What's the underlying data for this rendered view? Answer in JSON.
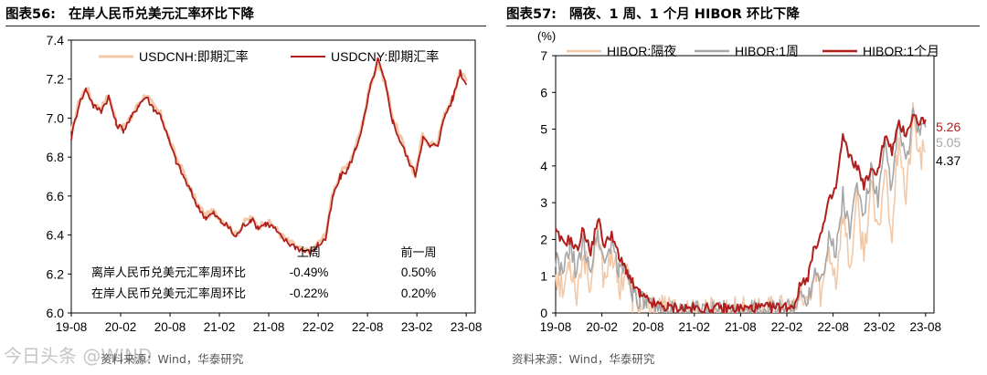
{
  "left": {
    "title_num": "图表56:",
    "title_text": "在岸人民币兑美元汇率环比下降",
    "source": "资料来源：Wind，华泰研究",
    "watermark": "今日头条 @WIND",
    "table": {
      "col1": "上周",
      "col2": "前一周",
      "rows": [
        {
          "label": "离岸人民币兑美元汇率周环比",
          "v1": "-0.49%",
          "v2": "0.50%"
        },
        {
          "label": "在岸人民币兑美元汇率周环比",
          "v1": "-0.22%",
          "v2": "0.20%"
        }
      ]
    },
    "chart_data": {
      "type": "line",
      "title": "在岸人民币兑美元汇率环比下降",
      "xlabel": "",
      "ylabel": "",
      "x_ticks": [
        "19-08",
        "20-02",
        "20-08",
        "21-02",
        "21-08",
        "22-02",
        "22-08",
        "23-02",
        "23-08"
      ],
      "ylim": [
        6.0,
        7.4
      ],
      "y_ticks": [
        "6.0",
        "6.2",
        "6.4",
        "6.6",
        "6.8",
        "7.0",
        "7.2",
        "7.4"
      ],
      "legend": "top",
      "colors": {
        "USDCNH": "#f2c9a8",
        "USDCNY": "#b01e1e"
      },
      "series": [
        {
          "name": "USDCNH:即期汇率",
          "anchors": [
            [
              0,
              6.92
            ],
            [
              0.5,
              7.08
            ],
            [
              1,
              7.16
            ],
            [
              1.5,
              7.07
            ],
            [
              2,
              7.05
            ],
            [
              2.5,
              7.12
            ],
            [
              3,
              6.98
            ],
            [
              3.5,
              6.95
            ],
            [
              4,
              7.0
            ],
            [
              4.5,
              7.08
            ],
            [
              5,
              7.12
            ],
            [
              5.5,
              7.06
            ],
            [
              6,
              7.02
            ],
            [
              6.5,
              6.9
            ],
            [
              7,
              6.8
            ],
            [
              7.5,
              6.72
            ],
            [
              8,
              6.63
            ],
            [
              8.5,
              6.55
            ],
            [
              9,
              6.5
            ],
            [
              9.5,
              6.52
            ],
            [
              10,
              6.48
            ],
            [
              10.5,
              6.45
            ],
            [
              11,
              6.4
            ],
            [
              11.5,
              6.46
            ],
            [
              12,
              6.49
            ],
            [
              12.5,
              6.44
            ],
            [
              13,
              6.47
            ],
            [
              13.5,
              6.45
            ],
            [
              14,
              6.4
            ],
            [
              14.5,
              6.37
            ],
            [
              15,
              6.34
            ],
            [
              15.5,
              6.32
            ],
            [
              16,
              6.32
            ],
            [
              16.5,
              6.36
            ],
            [
              17,
              6.4
            ],
            [
              17.5,
              6.62
            ],
            [
              18,
              6.72
            ],
            [
              18.5,
              6.75
            ],
            [
              19,
              6.85
            ],
            [
              19.5,
              6.98
            ],
            [
              20,
              7.18
            ],
            [
              20.5,
              7.28
            ],
            [
              21,
              7.18
            ],
            [
              21.5,
              7.0
            ],
            [
              22,
              6.9
            ],
            [
              22.5,
              6.8
            ],
            [
              23,
              6.7
            ],
            [
              23.5,
              6.92
            ],
            [
              24,
              6.86
            ],
            [
              24.5,
              6.88
            ],
            [
              25,
              7.03
            ],
            [
              25.5,
              7.1
            ],
            [
              26,
              7.25
            ],
            [
              26.4,
              7.19
            ]
          ]
        },
        {
          "name": "USDCNY:即期汇率",
          "anchors": [
            [
              0,
              6.9
            ],
            [
              0.5,
              7.07
            ],
            [
              1,
              7.15
            ],
            [
              1.5,
              7.06
            ],
            [
              2,
              7.04
            ],
            [
              2.5,
              7.11
            ],
            [
              3,
              6.97
            ],
            [
              3.5,
              6.94
            ],
            [
              4,
              7.0
            ],
            [
              4.5,
              7.07
            ],
            [
              5,
              7.11
            ],
            [
              5.5,
              7.05
            ],
            [
              6,
              7.01
            ],
            [
              6.5,
              6.89
            ],
            [
              7,
              6.78
            ],
            [
              7.5,
              6.7
            ],
            [
              8,
              6.62
            ],
            [
              8.5,
              6.54
            ],
            [
              9,
              6.49
            ],
            [
              9.5,
              6.51
            ],
            [
              10,
              6.47
            ],
            [
              10.5,
              6.44
            ],
            [
              11,
              6.39
            ],
            [
              11.5,
              6.45
            ],
            [
              12,
              6.48
            ],
            [
              12.5,
              6.44
            ],
            [
              13,
              6.46
            ],
            [
              13.5,
              6.44
            ],
            [
              14,
              6.39
            ],
            [
              14.5,
              6.36
            ],
            [
              15,
              6.34
            ],
            [
              15.5,
              6.32
            ],
            [
              16,
              6.31
            ],
            [
              16.5,
              6.35
            ],
            [
              17,
              6.38
            ],
            [
              17.5,
              6.6
            ],
            [
              18,
              6.7
            ],
            [
              18.5,
              6.74
            ],
            [
              19,
              6.84
            ],
            [
              19.5,
              6.97
            ],
            [
              20,
              7.16
            ],
            [
              20.5,
              7.3
            ],
            [
              21,
              7.17
            ],
            [
              21.5,
              6.98
            ],
            [
              22,
              6.88
            ],
            [
              22.5,
              6.79
            ],
            [
              23,
              6.71
            ],
            [
              23.5,
              6.9
            ],
            [
              24,
              6.85
            ],
            [
              24.5,
              6.87
            ],
            [
              25,
              7.02
            ],
            [
              25.5,
              7.1
            ],
            [
              26,
              7.24
            ],
            [
              26.4,
              7.17
            ]
          ]
        }
      ]
    }
  },
  "right": {
    "title_num": "图表57:",
    "title_text": "隔夜、1 周、1 个月 HIBOR 环比下降",
    "source": "资料来源：Wind，华泰研究",
    "chart_data": {
      "type": "line",
      "title": "隔夜、1 周、1 个月 HIBOR 环比下降",
      "xlabel": "",
      "ylabel": "(%)",
      "x_ticks": [
        "19-08",
        "20-02",
        "20-08",
        "21-02",
        "21-08",
        "22-02",
        "22-08",
        "23-02",
        "23-08"
      ],
      "ylim": [
        0,
        7
      ],
      "y_ticks": [
        "0",
        "1",
        "2",
        "3",
        "4",
        "5",
        "6",
        "7"
      ],
      "legend": "top",
      "colors": {
        "overnight": "#f2c9a8",
        "week": "#a6a6a6",
        "month": "#b01e1e"
      },
      "end_labels": [
        {
          "text": "5.26",
          "color": "#b01e1e"
        },
        {
          "text": "5.05",
          "color": "#a6a6a6"
        },
        {
          "text": "4.37",
          "color": "#000000"
        }
      ],
      "series": [
        {
          "name": "HIBOR:隔夜",
          "anchors": [
            [
              0,
              1.2
            ],
            [
              0.5,
              0.5
            ],
            [
              1,
              1.5
            ],
            [
              1.5,
              0.6
            ],
            [
              2,
              1.6
            ],
            [
              2.5,
              0.8
            ],
            [
              3,
              2.0
            ],
            [
              3.5,
              0.9
            ],
            [
              4,
              1.8
            ],
            [
              4.5,
              0.7
            ],
            [
              5,
              1.2
            ],
            [
              5.5,
              0.4
            ],
            [
              6,
              0.25
            ],
            [
              6.5,
              0.1
            ],
            [
              7,
              0.05
            ],
            [
              8,
              0.03
            ],
            [
              10,
              0.02
            ],
            [
              12,
              0.02
            ],
            [
              14,
              0.03
            ],
            [
              16,
              0.03
            ],
            [
              17,
              0.05
            ],
            [
              17.5,
              0.4
            ],
            [
              18,
              0.2
            ],
            [
              18.5,
              1.0
            ],
            [
              19,
              0.5
            ],
            [
              19.5,
              1.8
            ],
            [
              20,
              0.9
            ],
            [
              20.5,
              2.8
            ],
            [
              21,
              1.2
            ],
            [
              21.5,
              3.0
            ],
            [
              22,
              1.6
            ],
            [
              22.5,
              3.4
            ],
            [
              23,
              2.0
            ],
            [
              23.5,
              4.0
            ],
            [
              24,
              2.2
            ],
            [
              24.5,
              5.0
            ],
            [
              25,
              3.0
            ],
            [
              25.5,
              5.3
            ],
            [
              26,
              4.2
            ],
            [
              26.4,
              4.37
            ]
          ]
        },
        {
          "name": "HIBOR:1周",
          "anchors": [
            [
              0,
              1.5
            ],
            [
              0.5,
              1.0
            ],
            [
              1,
              1.8
            ],
            [
              1.5,
              1.1
            ],
            [
              2,
              1.9
            ],
            [
              2.5,
              1.2
            ],
            [
              3,
              2.2
            ],
            [
              3.5,
              1.3
            ],
            [
              4,
              2.0
            ],
            [
              4.5,
              1.1
            ],
            [
              5,
              1.3
            ],
            [
              5.5,
              0.6
            ],
            [
              6,
              0.35
            ],
            [
              6.5,
              0.2
            ],
            [
              7,
              0.1
            ],
            [
              8,
              0.06
            ],
            [
              10,
              0.05
            ],
            [
              12,
              0.05
            ],
            [
              14,
              0.06
            ],
            [
              16,
              0.07
            ],
            [
              17,
              0.1
            ],
            [
              17.5,
              0.5
            ],
            [
              18,
              0.4
            ],
            [
              18.5,
              1.2
            ],
            [
              19,
              1.0
            ],
            [
              19.5,
              2.1
            ],
            [
              20,
              1.6
            ],
            [
              20.5,
              3.2
            ],
            [
              21,
              2.2
            ],
            [
              21.5,
              3.5
            ],
            [
              22,
              2.6
            ],
            [
              22.5,
              3.9
            ],
            [
              23,
              3.0
            ],
            [
              23.5,
              4.5
            ],
            [
              24,
              3.4
            ],
            [
              24.5,
              5.2
            ],
            [
              25,
              4.0
            ],
            [
              25.5,
              5.4
            ],
            [
              26,
              4.8
            ],
            [
              26.4,
              5.05
            ]
          ]
        },
        {
          "name": "HIBOR:1个月",
          "anchors": [
            [
              0,
              2.2
            ],
            [
              0.5,
              1.9
            ],
            [
              1,
              2.0
            ],
            [
              1.5,
              1.7
            ],
            [
              2,
              2.3
            ],
            [
              2.5,
              1.6
            ],
            [
              3,
              2.6
            ],
            [
              3.5,
              1.8
            ],
            [
              4,
              2.2
            ],
            [
              4.5,
              1.5
            ],
            [
              5,
              1.2
            ],
            [
              5.5,
              0.8
            ],
            [
              6,
              0.5
            ],
            [
              6.5,
              0.35
            ],
            [
              7,
              0.25
            ],
            [
              8,
              0.15
            ],
            [
              10,
              0.12
            ],
            [
              12,
              0.12
            ],
            [
              14,
              0.13
            ],
            [
              16,
              0.15
            ],
            [
              17,
              0.2
            ],
            [
              17.5,
              0.8
            ],
            [
              18,
              1.0
            ],
            [
              18.5,
              1.8
            ],
            [
              19,
              2.2
            ],
            [
              19.5,
              3.0
            ],
            [
              20,
              3.4
            ],
            [
              20.5,
              4.8
            ],
            [
              21,
              4.2
            ],
            [
              21.5,
              4.0
            ],
            [
              22,
              3.5
            ],
            [
              22.5,
              3.8
            ],
            [
              23,
              3.9
            ],
            [
              23.5,
              4.8
            ],
            [
              24,
              4.4
            ],
            [
              24.5,
              5.1
            ],
            [
              25,
              4.9
            ],
            [
              25.5,
              5.35
            ],
            [
              26,
              5.2
            ],
            [
              26.4,
              5.26
            ]
          ]
        }
      ]
    }
  }
}
